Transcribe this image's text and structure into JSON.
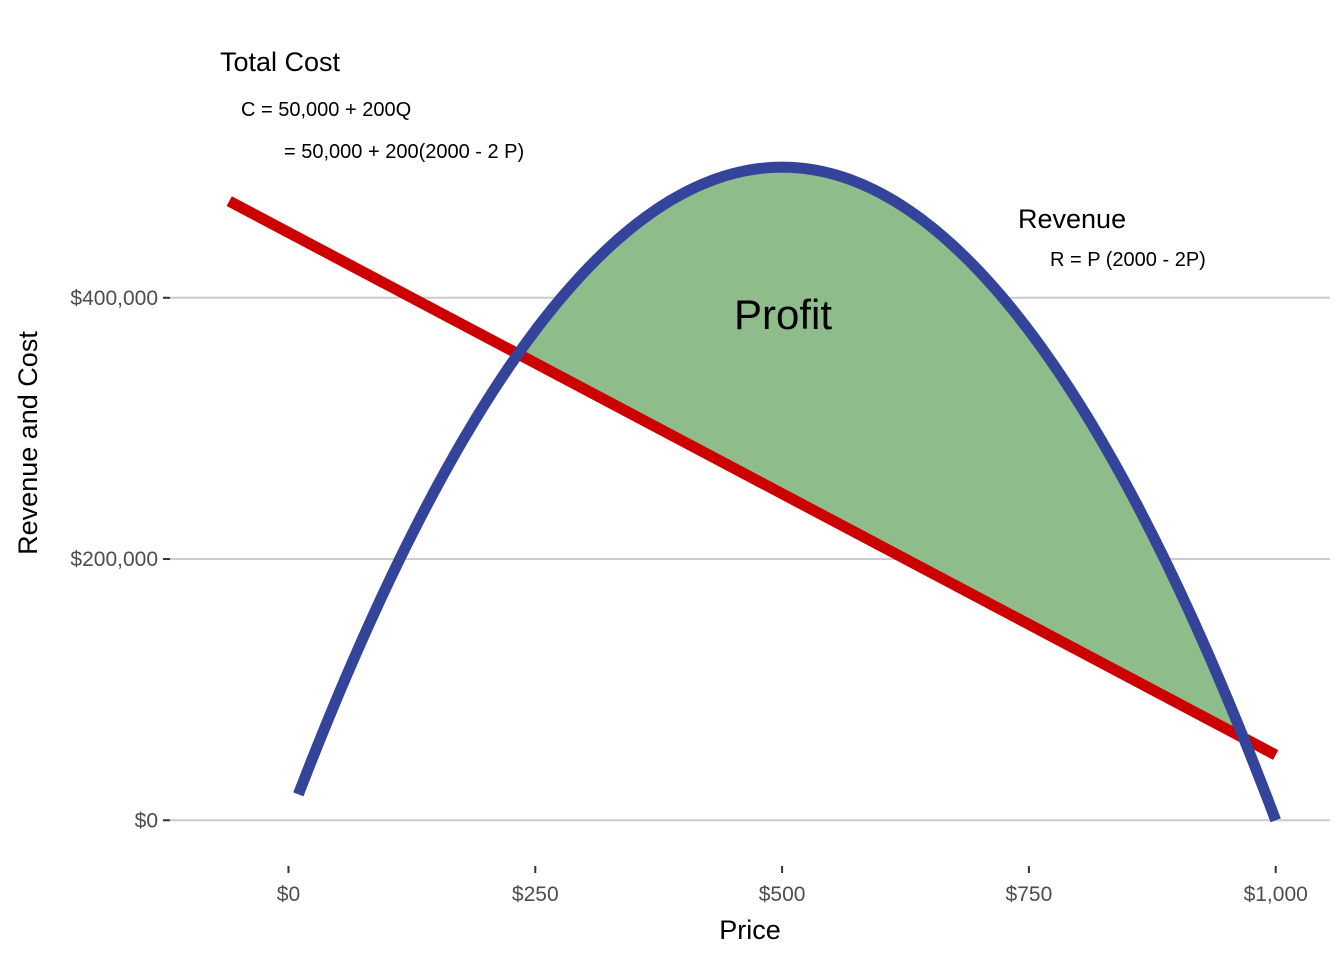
{
  "chart_data": {
    "type": "line",
    "title": "",
    "xlabel": "Price",
    "ylabel": "Revenue and Cost",
    "xlim": [
      -120,
      1055
    ],
    "ylim": [
      -35000,
      605000
    ],
    "x_ticks": [
      0,
      250,
      500,
      750,
      1000
    ],
    "x_tick_labels": [
      "$0",
      "$250",
      "$500",
      "$750",
      "$1,000"
    ],
    "y_ticks": [
      0,
      200000,
      400000
    ],
    "y_tick_labels": [
      "$0",
      "$200,000",
      "$400,000"
    ],
    "grid": "horizontal major lines only",
    "legend": "none",
    "series": [
      {
        "name": "Revenue",
        "formula": "R = P (2000 - 2P)",
        "color": "#33449a",
        "x": [
          10,
          50,
          100,
          150,
          200,
          250,
          300,
          350,
          400,
          450,
          500,
          550,
          600,
          650,
          700,
          750,
          800,
          850,
          900,
          950,
          1000
        ],
        "y": [
          19800,
          95000,
          180000,
          255000,
          320000,
          375000,
          420000,
          455000,
          480000,
          495000,
          500000,
          495000,
          480000,
          455000,
          420000,
          375000,
          320000,
          255000,
          180000,
          95000,
          0
        ]
      },
      {
        "name": "Total Cost",
        "formula": "C = 50,000 + 200(2000 - 2P)",
        "color": "#cc0000",
        "x": [
          -60,
          0,
          250,
          500,
          750,
          1000
        ],
        "y": [
          474000,
          450000,
          350000,
          250000,
          150000,
          50000
        ]
      }
    ],
    "profit_region": {
      "label": "Profit",
      "fill": "#8fbc8b",
      "x_range": [
        234.3,
        965.7
      ]
    }
  },
  "annotations": {
    "cost_title": "Total Cost",
    "cost_eq1": "C = 50,000 + 200Q",
    "cost_eq2": "= 50,000 + 200(2000 - 2 P)",
    "revenue_title": "Revenue",
    "revenue_eq": "R = P (2000 - 2P)",
    "profit_label": "Profit"
  }
}
